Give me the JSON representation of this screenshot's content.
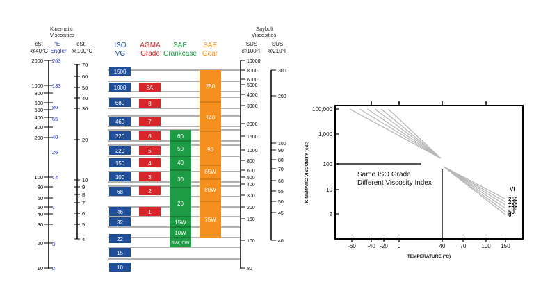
{
  "left_chart": {
    "headers": {
      "kinematic": [
        "Kinematic",
        "Viscosities"
      ],
      "saybolt": [
        "Saybolt",
        "Viscosities"
      ],
      "cst40": [
        "cSt",
        "@40°C"
      ],
      "engler": [
        "°E",
        "Engler"
      ],
      "cst100": [
        "cSt",
        "@100°C"
      ],
      "iso": [
        "ISO",
        "VG"
      ],
      "agma": [
        "AGMA",
        "Grade"
      ],
      "sae_crank": [
        "SAE",
        "Crankcase"
      ],
      "sae_gear": [
        "SAE",
        "Gear"
      ],
      "sus100": [
        "SUS",
        "@100°F"
      ],
      "sus210": [
        "SUS",
        "@210°F"
      ]
    },
    "cst40_ticks": [
      "2000",
      "1000",
      "800",
      "600",
      "500",
      "400",
      "300",
      "200",
      "100",
      "80",
      "60",
      "50",
      "40",
      "30",
      "20",
      "10"
    ],
    "engler_ticks": [
      "263",
      "133",
      "80",
      "65",
      "40",
      "26",
      "14",
      "7",
      "3",
      "2"
    ],
    "cst100_ticks": [
      "70",
      "60",
      "50",
      "40",
      "30",
      "20",
      "10",
      "9",
      "8",
      "7",
      "6",
      "5",
      "4"
    ],
    "sus100_ticks": [
      "10000",
      "8000",
      "6000",
      "5000",
      "4000",
      "3000",
      "2000",
      "1500",
      "1000",
      "800",
      "600",
      "500",
      "400",
      "300",
      "200",
      "150",
      "100",
      "80"
    ],
    "sus210_ticks": [
      "300",
      "200",
      "100",
      "90",
      "80",
      "70",
      "60",
      "55",
      "50",
      "45",
      "40"
    ],
    "iso_grades": [
      "1500",
      "1000",
      "680",
      "460",
      "320",
      "220",
      "150",
      "100",
      "68",
      "46",
      "32",
      "22",
      "15",
      "10"
    ],
    "agma_grades": [
      "8A",
      "8",
      "7",
      "6",
      "5",
      "4",
      "3",
      "2",
      "1"
    ],
    "sae_crankcase": [
      "60",
      "50",
      "40",
      "30",
      "20",
      "15W",
      "10W",
      "5W, 0W"
    ],
    "sae_gear": [
      "250",
      "140",
      "90",
      "85W",
      "80W",
      "75W"
    ],
    "colors": {
      "iso": "#1f4e9b",
      "agma": "#d9262a",
      "crank": "#1e9b45",
      "gear": "#f5901e",
      "engler": "#2233cc"
    }
  },
  "chart_data": {
    "type": "line",
    "xlabel": "TEMPERATURE (°C)",
    "ylabel": "KINEMATIC VISCOSITY (cSt)",
    "x_ticks": [
      "-60",
      "-40",
      "-20",
      "0",
      "40",
      "70",
      "100",
      "150"
    ],
    "y_ticks": [
      "100,000",
      "1,000",
      "100",
      "10",
      "2"
    ],
    "annotation": [
      "Same ISO Grade",
      "Different Viscosity Index"
    ],
    "legend_title": "VI",
    "series": [
      {
        "name": "0",
        "x": [
          -62,
          40,
          150
        ],
        "y": [
          100000,
          100,
          1.9
        ]
      },
      {
        "name": "50",
        "x": [
          -52,
          40,
          150
        ],
        "y": [
          100000,
          100,
          2.3
        ]
      },
      {
        "name": "100",
        "x": [
          -44,
          40,
          150
        ],
        "y": [
          100000,
          100,
          2.9
        ]
      },
      {
        "name": "150",
        "x": [
          -34,
          40,
          150
        ],
        "y": [
          100000,
          100,
          3.6
        ]
      },
      {
        "name": "200",
        "x": [
          -24,
          40,
          150
        ],
        "y": [
          100000,
          100,
          4.4
        ]
      },
      {
        "name": "250",
        "x": [
          -14,
          40,
          150
        ],
        "y": [
          100000,
          100,
          5.4
        ]
      }
    ],
    "colors": {
      "curves": "#b8b8b8",
      "axis": "#000000",
      "guide": "#555555"
    }
  }
}
